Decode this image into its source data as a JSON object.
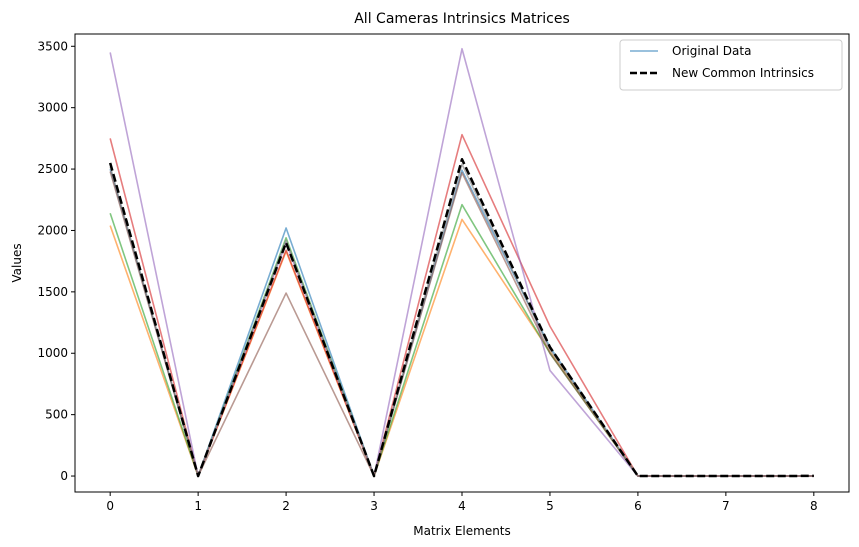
{
  "chart_data": {
    "type": "line",
    "title": "All Cameras Intrinsics Matrices",
    "xlabel": "Matrix Elements",
    "ylabel": "Values",
    "x": [
      0,
      1,
      2,
      3,
      4,
      5,
      6,
      7,
      8
    ],
    "xticks": [
      "0",
      "1",
      "2",
      "3",
      "4",
      "5",
      "6",
      "7",
      "8"
    ],
    "xlim": [
      -0.4,
      8.4
    ],
    "yticks": [
      "0",
      "500",
      "1000",
      "1500",
      "2000",
      "2500",
      "3000",
      "3500"
    ],
    "ytick_values": [
      0,
      500,
      1000,
      1500,
      2000,
      2500,
      3000,
      3500
    ],
    "ylim": [
      -130,
      3600
    ],
    "grid": false,
    "legend_position": "top-right",
    "legend": [
      {
        "label": "Original Data",
        "color": "#1f77b4",
        "style": "solid"
      },
      {
        "label": "New Common Intrinsics",
        "color": "#000000",
        "style": "dashed"
      }
    ],
    "series": [
      {
        "color": "#1f77b4",
        "style": "solid",
        "alpha": 0.6,
        "values": [
          2500,
          0,
          2020,
          0,
          2490,
          1050,
          0,
          0,
          1
        ]
      },
      {
        "color": "#ff7f0e",
        "style": "solid",
        "alpha": 0.6,
        "values": [
          2040,
          0,
          1830,
          0,
          2090,
          1010,
          0,
          0,
          1
        ]
      },
      {
        "color": "#2ca02c",
        "style": "solid",
        "alpha": 0.6,
        "values": [
          2140,
          0,
          1940,
          0,
          2210,
          1000,
          0,
          0,
          1
        ]
      },
      {
        "color": "#d62728",
        "style": "solid",
        "alpha": 0.6,
        "values": [
          2750,
          0,
          1840,
          0,
          2780,
          1220,
          0,
          0,
          1
        ]
      },
      {
        "color": "#9467bd",
        "style": "solid",
        "alpha": 0.6,
        "values": [
          3450,
          0,
          1900,
          0,
          3480,
          860,
          0,
          0,
          1
        ]
      },
      {
        "color": "#8c564b",
        "style": "solid",
        "alpha": 0.6,
        "values": [
          2480,
          0,
          1490,
          0,
          2470,
          1000,
          0,
          0,
          1
        ]
      },
      {
        "color": "#7f7f7f",
        "style": "solid",
        "alpha": 0.6,
        "values": [
          2520,
          0,
          1920,
          0,
          2540,
          1030,
          0,
          0,
          1
        ]
      },
      {
        "name": "New Common Intrinsics",
        "color": "#000000",
        "style": "dashed",
        "alpha": 1.0,
        "values": [
          2550,
          0,
          1900,
          0,
          2580,
          1050,
          0,
          0,
          1
        ]
      }
    ]
  }
}
